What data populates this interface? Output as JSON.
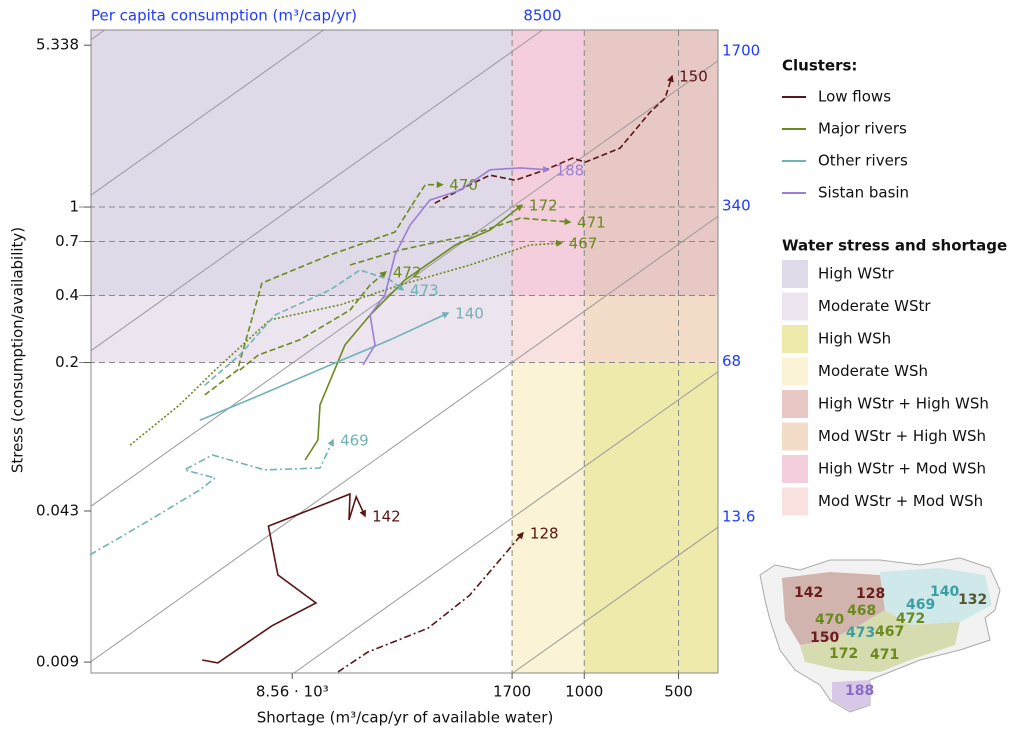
{
  "chart_data": {
    "type": "trajectory",
    "top_axis_label": "Per capita consumption (m³/cap/yr)",
    "y_label": "Stress (consumption/availability)",
    "x_label": "Shortage (m³/cap/yr of available water)",
    "xscale": "log",
    "yscale": "log",
    "xlim": [
      37600,
      374
    ],
    "ylim": [
      0.00804,
      6.25
    ],
    "xticks": [
      {
        "value": 8560,
        "label": "8.56 · 10³"
      },
      1700,
      1000,
      500
    ],
    "yticks": [
      0.009,
      0.043,
      0.2,
      0.4,
      0.7,
      1,
      5.338
    ],
    "x_gridlines": [
      1700,
      1000,
      500
    ],
    "y_gridlines": [
      0.2,
      0.4,
      0.7,
      1
    ],
    "consumption_top_ticks": [
      8500
    ],
    "consumption_right_ticks": [
      1700,
      340,
      68,
      13.6
    ],
    "consumption_lines_extra": [
      212500,
      42500
    ],
    "legend_title": "Clusters:",
    "regions_title": "Water stress and shortage",
    "regions": [
      {
        "name": "High WStr",
        "color": "#e0d9e8",
        "x": [
          37600,
          1700
        ],
        "y": [
          0.4,
          6.25
        ]
      },
      {
        "name": "Moderate WStr",
        "color": "#ece4ef",
        "x": [
          37600,
          1700
        ],
        "y": [
          0.2,
          0.4
        ]
      },
      {
        "name": "High WSh",
        "color": "#eeeaab",
        "x": [
          1000,
          374
        ],
        "y": [
          0.00804,
          0.2
        ]
      },
      {
        "name": "Moderate WSh",
        "color": "#faf3d5",
        "x": [
          1700,
          1000
        ],
        "y": [
          0.00804,
          0.2
        ]
      },
      {
        "name": "High WStr + High WSh",
        "color": "#e8c8c4",
        "x": [
          1000,
          374
        ],
        "y": [
          0.4,
          6.25
        ]
      },
      {
        "name": "Mod WStr + High WSh",
        "color": "#f3ddc9",
        "x": [
          1000,
          374
        ],
        "y": [
          0.2,
          0.4
        ]
      },
      {
        "name": "High WStr + Mod WSh",
        "color": "#f4cedc",
        "x": [
          1700,
          1000
        ],
        "y": [
          0.4,
          6.25
        ]
      },
      {
        "name": "Mod WStr + Mod WSh",
        "color": "#f8e1df",
        "x": [
          1700,
          1000
        ],
        "y": [
          0.2,
          0.4
        ]
      }
    ],
    "series": [
      {
        "name": "Low flows",
        "color": "#5a1515",
        "trajectories": [
          {
            "label": "142",
            "dash": "solid",
            "x": [
              16600,
              14800,
              9940,
              7190,
              9510,
              10200,
              5600,
              5640,
              5350,
              5010
            ],
            "values": [
              0.0092,
              0.00893,
              0.0131,
              0.0166,
              0.0222,
              0.0368,
              0.0513,
              0.0392,
              0.0498,
              0.0408
            ]
          },
          {
            "label": "128",
            "dash": "dashdot",
            "x": [
              6110,
              4900,
              3930,
              3150,
              2320,
              1570
            ],
            "values": [
              0.00813,
              0.01,
              0.0113,
              0.0128,
              0.018,
              0.0343
            ]
          },
          {
            "label": "150",
            "dash": "dashed",
            "x": [
              3000,
              2320,
              2000,
              1660,
              1330,
              1090,
              994,
              768,
              616,
              552,
              524
            ],
            "values": [
              1.04,
              1.26,
              1.39,
              1.32,
              1.47,
              1.66,
              1.59,
              1.84,
              2.67,
              3.09,
              3.88
            ]
          }
        ]
      },
      {
        "name": "Major rivers",
        "color": "#6b8a1c",
        "trajectories": [
          {
            "label": "470",
            "dash": "dashed",
            "x": [
              16300,
              12800,
              10700,
              6480,
              4020,
              3470,
              3220,
              2840
            ],
            "values": [
              0.143,
              0.185,
              0.455,
              0.609,
              0.772,
              1.075,
              1.26,
              1.26
            ]
          },
          {
            "label": "472",
            "dash": "dashed",
            "x": [
              12600,
              11000,
              8090,
              5600,
              4830,
              4300
            ],
            "values": [
              0.185,
              0.216,
              0.253,
              0.344,
              0.446,
              0.511
            ]
          },
          {
            "label": "172",
            "dash": "solid",
            "x": [
              7790,
              7090,
              6980,
              5810,
              4830,
              3740,
              2580,
              2000,
              1580
            ],
            "values": [
              0.0729,
              0.0897,
              0.129,
              0.24,
              0.327,
              0.47,
              0.675,
              0.788,
              1.02
            ]
          },
          {
            "label": "471",
            "dash": "dashed",
            "x": [
              5600,
              3870,
              2320,
              1600,
              1110
            ],
            "values": [
              0.549,
              0.641,
              0.748,
              0.892,
              0.856
            ]
          },
          {
            "label": "467",
            "dash": "dotted",
            "x": [
              28200,
              19600,
              15100,
              10100,
              6025,
              3870,
              2320,
              1490,
              1180
            ],
            "values": [
              0.0851,
              0.129,
              0.185,
              0.311,
              0.363,
              0.446,
              0.549,
              0.675,
              0.689
            ]
          }
        ]
      },
      {
        "name": "Other rivers",
        "color": "#6fb3b8",
        "trajectories": [
          {
            "label": "140",
            "dash": "solid",
            "x": [
              16900,
              10800,
              6480,
              4170,
              2720
            ],
            "values": [
              0.11,
              0.143,
              0.195,
              0.253,
              0.334
            ]
          },
          {
            "label": "469",
            "dash": "dashdot",
            "x": [
              37900,
              24400,
              16900,
              15100,
              18900,
              15400,
              10500,
              6980,
              6340
            ],
            "values": [
              0.0273,
              0.0392,
              0.0535,
              0.0605,
              0.0658,
              0.0768,
              0.0658,
              0.0671,
              0.0897
            ]
          },
          {
            "label": "473",
            "dash": "dashed",
            "x": [
              16300,
              12600,
              9710,
              6480,
              5200,
              4170,
              3790
            ],
            "values": [
              0.158,
              0.216,
              0.327,
              0.424,
              0.521,
              0.47,
              0.424
            ]
          }
        ]
      },
      {
        "name": "Sistan basin",
        "color": "#9b7fd4",
        "trajectories": [
          {
            "label": "188",
            "dash": "solid",
            "x": [
              5090,
              4660,
              4830,
              4330,
              4020,
              3600,
              3110,
              2490,
              2000,
              1600,
              1300
            ],
            "values": [
              0.195,
              0.24,
              0.327,
              0.402,
              0.609,
              0.83,
              1.075,
              1.19,
              1.47,
              1.5,
              1.47
            ]
          }
        ]
      }
    ],
    "inset_map": {
      "labels": [
        {
          "text": "142",
          "color": "#6b1c1c"
        },
        {
          "text": "128",
          "color": "#6b1c1c"
        },
        {
          "text": "140",
          "color": "#3a9ea3"
        },
        {
          "text": "469",
          "color": "#3a9ea3"
        },
        {
          "text": "132",
          "color": "#555533"
        },
        {
          "text": "470",
          "color": "#6b8a1c"
        },
        {
          "text": "468",
          "color": "#6b8a1c"
        },
        {
          "text": "472",
          "color": "#6b8a1c"
        },
        {
          "text": "150",
          "color": "#6b1c1c"
        },
        {
          "text": "473",
          "color": "#3a9ea3"
        },
        {
          "text": "467",
          "color": "#6b8a1c"
        },
        {
          "text": "172",
          "color": "#6b8a1c"
        },
        {
          "text": "471",
          "color": "#6b8a1c"
        },
        {
          "text": "188",
          "color": "#8a6cc4"
        }
      ]
    }
  }
}
